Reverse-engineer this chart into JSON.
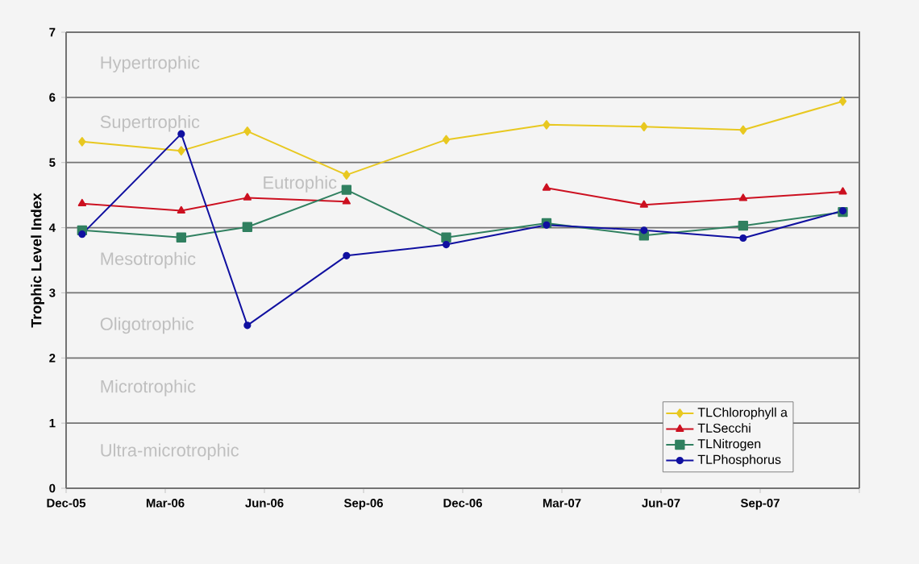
{
  "chart_data": {
    "type": "line",
    "ylabel": "Trophic Level Index",
    "x": [
      "2005-12-16",
      "2006-03-16",
      "2006-05-16",
      "2006-08-16",
      "2006-11-16",
      "2007-02-16",
      "2007-05-16",
      "2007-08-16",
      "2007-11-16"
    ],
    "xlim": [
      "2005-12-01",
      "2007-12-01"
    ],
    "xticks": [
      {
        "value": "2005-12-01",
        "label": "Dec-05"
      },
      {
        "value": "2006-03-01",
        "label": "Mar-06"
      },
      {
        "value": "2006-06-01",
        "label": "Jun-06"
      },
      {
        "value": "2006-09-01",
        "label": "Sep-06"
      },
      {
        "value": "2006-12-01",
        "label": "Dec-06"
      },
      {
        "value": "2007-03-01",
        "label": "Mar-07"
      },
      {
        "value": "2007-06-01",
        "label": "Jun-07"
      },
      {
        "value": "2007-09-01",
        "label": "Sep-07"
      },
      {
        "value": "2007-12-01",
        "label": null
      }
    ],
    "ylim": [
      0,
      7
    ],
    "yticks": [
      0,
      1,
      2,
      3,
      4,
      5,
      6,
      7
    ],
    "grid": "y",
    "legend": "bottom right",
    "series": [
      {
        "name": "TLChlorophyll a",
        "color": "#e8c820",
        "marker": "diamond",
        "values": [
          5.32,
          5.18,
          5.48,
          4.81,
          5.35,
          5.58,
          5.55,
          5.5,
          5.94
        ]
      },
      {
        "name": "TLSecchi",
        "color": "#cc1020",
        "marker": "triangle",
        "values": [
          4.37,
          4.26,
          4.46,
          4.4,
          null,
          4.61,
          4.35,
          4.45,
          4.55
        ]
      },
      {
        "name": "TLNitrogen",
        "color": "#308060",
        "marker": "square",
        "values": [
          3.96,
          3.85,
          4.01,
          4.58,
          3.85,
          4.07,
          3.88,
          4.03,
          4.24
        ]
      },
      {
        "name": "TLPhosphorus",
        "color": "#1010a0",
        "marker": "circle",
        "values": [
          3.9,
          5.44,
          2.5,
          3.57,
          3.74,
          4.04,
          3.96,
          3.84,
          4.26
        ]
      }
    ],
    "annotations": [
      "Hypertrophic",
      "Supertrophic",
      "Eutrophic",
      "Mesotrophic",
      "Oligotrophic",
      "Microtrophic",
      "Ultra-microtrophic"
    ]
  }
}
